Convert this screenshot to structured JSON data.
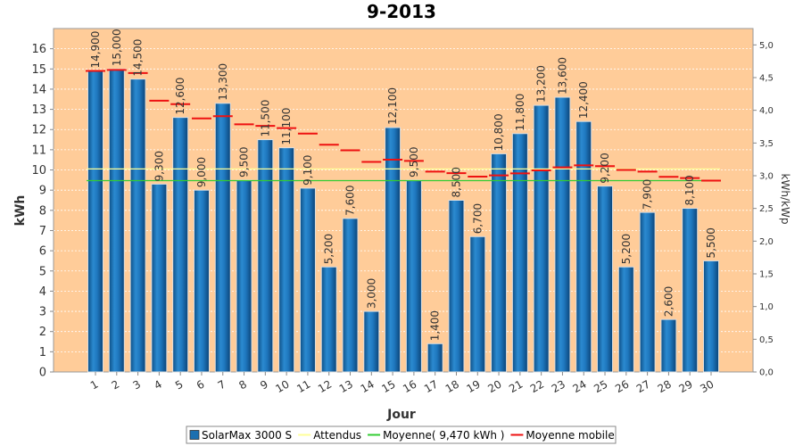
{
  "chart_data": {
    "type": "bar",
    "title": "9-2013",
    "xlabel": "Jour",
    "ylabel": "kWh",
    "y2label": "kWh/kWp",
    "ylim": [
      0,
      17
    ],
    "y2lim": [
      0,
      5.25
    ],
    "yticks": [
      "0",
      "1",
      "2",
      "3",
      "4",
      "5",
      "6",
      "7",
      "8",
      "9",
      "10",
      "11",
      "12",
      "13",
      "14",
      "15",
      "16"
    ],
    "y2ticks": [
      "0,0",
      "0,5",
      "1,0",
      "1,5",
      "2,0",
      "2,5",
      "3,0",
      "3,5",
      "4,0",
      "4,5",
      "5,0"
    ],
    "categories": [
      "1",
      "2",
      "3",
      "4",
      "5",
      "6",
      "7",
      "8",
      "9",
      "10",
      "11",
      "12",
      "13",
      "14",
      "15",
      "16",
      "17",
      "18",
      "19",
      "20",
      "21",
      "22",
      "23",
      "24",
      "25",
      "26",
      "27",
      "28",
      "29",
      "30"
    ],
    "series": [
      {
        "name": "SolarMax 3000 S",
        "type": "bar",
        "color": "#1b6fb0",
        "values": [
          14.9,
          15.0,
          14.5,
          9.3,
          12.6,
          9.0,
          13.3,
          9.5,
          11.5,
          11.1,
          9.1,
          5.2,
          7.6,
          3.0,
          12.1,
          9.5,
          1.4,
          8.5,
          6.7,
          10.8,
          11.8,
          13.2,
          13.6,
          12.4,
          9.2,
          5.2,
          7.9,
          2.6,
          8.1,
          5.5
        ],
        "labels": [
          "14,900",
          "15,000",
          "14,500",
          "9,300",
          "12,600",
          "9,000",
          "13,300",
          "9,500",
          "11,500",
          "11,100",
          "9,100",
          "5,200",
          "7,600",
          "3,000",
          "12,100",
          "9,500",
          "1,400",
          "8,500",
          "6,700",
          "10,800",
          "11,800",
          "13,200",
          "13,600",
          "12,400",
          "9,200",
          "5,200",
          "7,900",
          "2,600",
          "8,100",
          "5,500"
        ]
      },
      {
        "name": "Attendus",
        "type": "line",
        "color": "#ffff99",
        "values": [
          10.05,
          10.05,
          10.05,
          10.05,
          10.05,
          10.05,
          10.05,
          10.05,
          10.05,
          10.05,
          10.05,
          10.05,
          10.05,
          10.05,
          10.05,
          10.05,
          10.05,
          10.05,
          10.05,
          10.05,
          10.05,
          10.05,
          10.05,
          10.05,
          10.05,
          10.05,
          10.05,
          10.05,
          10.05,
          10.05
        ]
      },
      {
        "name": "Moyenne( 9,470 kWh )",
        "type": "line",
        "color": "#33cc33",
        "values": [
          9.47,
          9.47,
          9.47,
          9.47,
          9.47,
          9.47,
          9.47,
          9.47,
          9.47,
          9.47,
          9.47,
          9.47,
          9.47,
          9.47,
          9.47,
          9.47,
          9.47,
          9.47,
          9.47,
          9.47,
          9.47,
          9.47,
          9.47,
          9.47,
          9.47,
          9.47,
          9.47,
          9.47,
          9.47,
          9.47
        ]
      },
      {
        "name": "Moyenne mobile",
        "type": "line",
        "color": "#ee1111",
        "values": [
          14.9,
          14.95,
          14.8,
          13.43,
          13.26,
          12.55,
          12.66,
          12.26,
          12.18,
          12.07,
          11.8,
          11.25,
          10.97,
          10.4,
          10.51,
          10.45,
          9.92,
          9.84,
          9.67,
          9.73,
          9.83,
          9.98,
          10.13,
          10.23,
          10.19,
          10.0,
          9.92,
          9.66,
          9.6,
          9.47
        ]
      }
    ],
    "legend_position": "bottom",
    "grid": true,
    "plot_background": "#ffcc99"
  }
}
